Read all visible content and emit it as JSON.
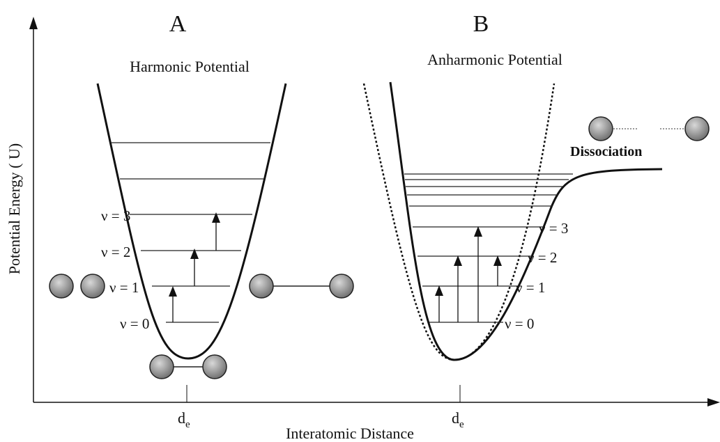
{
  "axes": {
    "y_label": "Potential Energy ( U)",
    "x_label": "Interatomic Distance"
  },
  "panel_a": {
    "letter": "A",
    "title": "Harmonic Potential",
    "levels": [
      "ν = 0",
      "ν = 1",
      "ν = 2",
      "ν = 3"
    ],
    "equilibrium": {
      "symbol": "d",
      "subscript": "e"
    }
  },
  "panel_b": {
    "letter": "B",
    "title": "Anharmonic Potential",
    "levels": [
      "ν = 0",
      "ν = 1",
      "ν = 2",
      "ν = 3"
    ],
    "equilibrium": {
      "symbol": "d",
      "subscript": "e"
    },
    "dissociation": "Dissociation"
  }
}
